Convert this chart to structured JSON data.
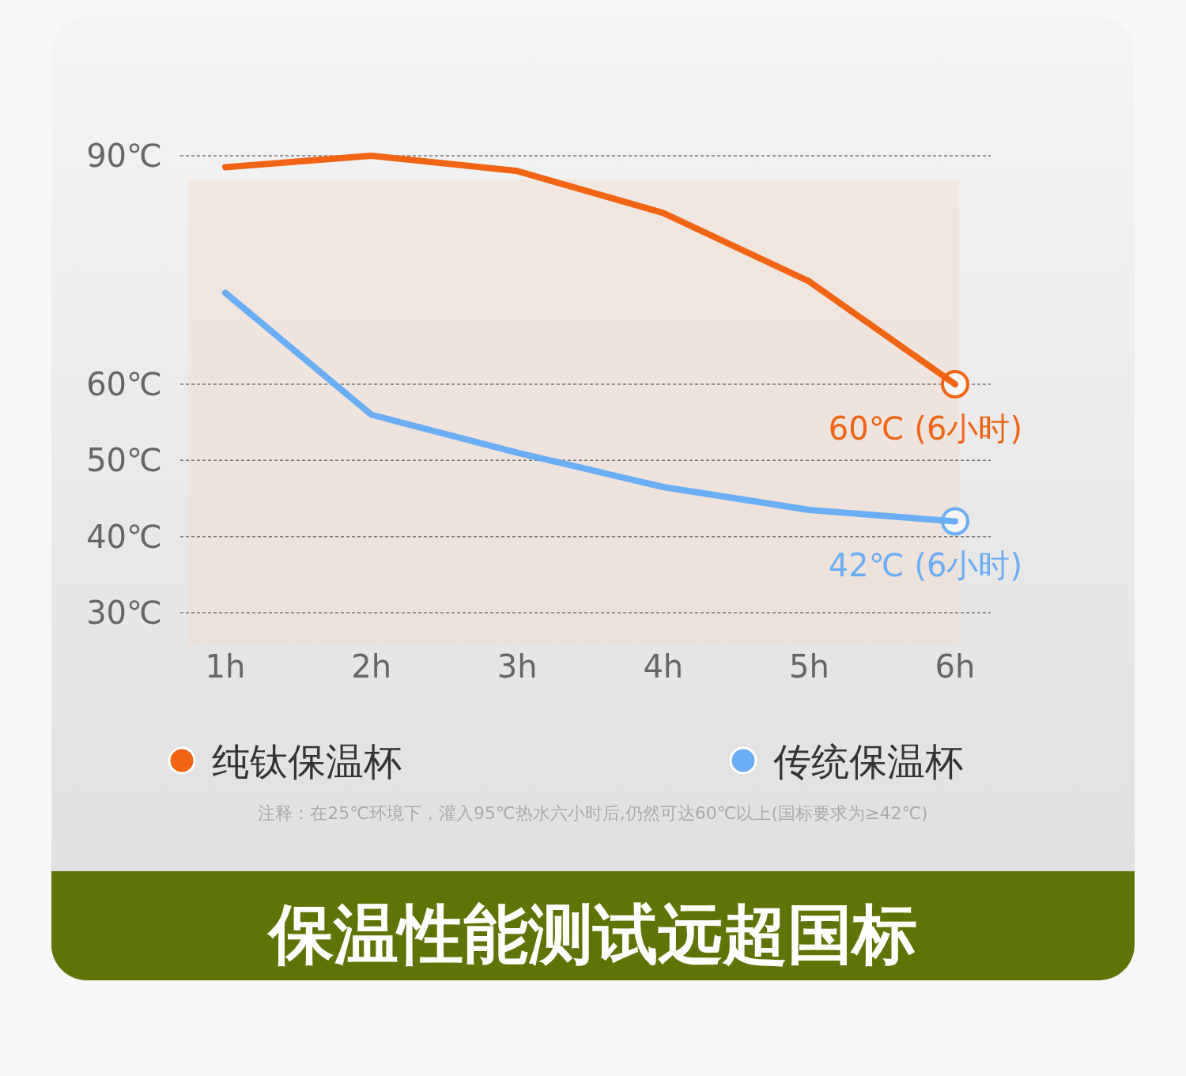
{
  "chart_data": {
    "type": "line",
    "title": "保温性能测试远超国标",
    "categories": [
      "1h",
      "2h",
      "3h",
      "4h",
      "5h",
      "6h"
    ],
    "series": [
      {
        "name": "纯钛保温杯",
        "color": "#f06414",
        "values": [
          88.5,
          90,
          88,
          82.5,
          73.5,
          60
        ]
      },
      {
        "name": "传统保温杯",
        "color": "#6aaef5",
        "values": [
          72,
          56,
          51,
          46.5,
          43.5,
          42
        ]
      }
    ],
    "ylim": [
      30,
      90
    ],
    "yticks": [
      {
        "value": 30,
        "label": "30℃"
      },
      {
        "value": 40,
        "label": "40℃"
      },
      {
        "value": 50,
        "label": "50℃"
      },
      {
        "value": 60,
        "label": "60℃"
      },
      {
        "value": 90,
        "label": "90℃"
      }
    ],
    "grid": "y",
    "legend": "bottom",
    "annotations": [
      {
        "text": "60℃ (6小时)",
        "x": "6h",
        "y": 60
      },
      {
        "text": "42℃ (6小时)",
        "x": "6h",
        "y": 42
      },
      "注释：在25℃环境下，灌入95℃热水六小时后,仍然可达60℃以上(国标要求为≥42℃)"
    ]
  }
}
